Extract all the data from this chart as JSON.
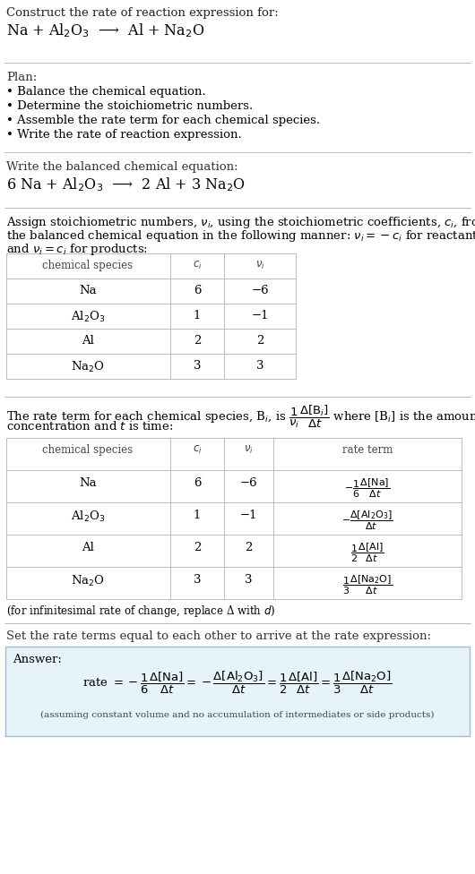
{
  "bg_color": "#ffffff",
  "text_color": "#000000",
  "gray_text": "#444444",
  "line_color": "#bbbbbb",
  "title_line1": "Construct the rate of reaction expression for:",
  "reaction_unbalanced": "Na + Al$_2$O$_3$  ⟶  Al + Na$_2$O",
  "plan_header": "Plan:",
  "plan_bullets": [
    "• Balance the chemical equation.",
    "• Determine the stoichiometric numbers.",
    "• Assemble the rate term for each chemical species.",
    "• Write the rate of reaction expression."
  ],
  "balanced_header": "Write the balanced chemical equation:",
  "reaction_balanced": "6 Na + Al$_2$O$_3$  ⟶  2 Al + 3 Na$_2$O",
  "stoich_intro_line1": "Assign stoichiometric numbers, $\\nu_i$, using the stoichiometric coefficients, $c_i$, from",
  "stoich_intro_line2": "the balanced chemical equation in the following manner: $\\nu_i = -c_i$ for reactants",
  "stoich_intro_line3": "and $\\nu_i = c_i$ for products:",
  "t1_headers": [
    "chemical species",
    "$c_i$",
    "$\\nu_i$"
  ],
  "t1_rows": [
    [
      "Na",
      "6",
      "−6"
    ],
    [
      "Al$_2$O$_3$",
      "1",
      "−1"
    ],
    [
      "Al",
      "2",
      "2"
    ],
    [
      "Na$_2$O",
      "3",
      "3"
    ]
  ],
  "rate_intro_line1": "The rate term for each chemical species, B$_i$, is $\\dfrac{1}{\\nu_i}\\dfrac{\\Delta[\\mathrm{B}_i]}{\\Delta t}$ where [B$_i$] is the amount",
  "rate_intro_line2": "concentration and $t$ is time:",
  "t2_headers": [
    "chemical species",
    "$c_i$",
    "$\\nu_i$",
    "rate term"
  ],
  "t2_rows": [
    [
      "Na",
      "6",
      "−6"
    ],
    [
      "Al$_2$O$_3$",
      "1",
      "−1"
    ],
    [
      "Al",
      "2",
      "2"
    ],
    [
      "Na$_2$O",
      "3",
      "3"
    ]
  ],
  "rate_terms": [
    "$-\\dfrac{1}{6}\\dfrac{\\Delta[\\mathrm{Na}]}{\\Delta t}$",
    "$-\\dfrac{\\Delta[\\mathrm{Al_2O_3}]}{\\Delta t}$",
    "$\\dfrac{1}{2}\\dfrac{\\Delta[\\mathrm{Al}]}{\\Delta t}$",
    "$\\dfrac{1}{3}\\dfrac{\\Delta[\\mathrm{Na_2O}]}{\\Delta t}$"
  ],
  "infinitesimal_note": "(for infinitesimal rate of change, replace Δ with $d$)",
  "answer_intro": "Set the rate terms equal to each other to arrive at the rate expression:",
  "answer_label": "Answer:",
  "answer_box_bg": "#e6f3f8",
  "answer_box_border": "#9bbfcf",
  "answer_note": "(assuming constant volume and no accumulation of intermediates or side products)"
}
